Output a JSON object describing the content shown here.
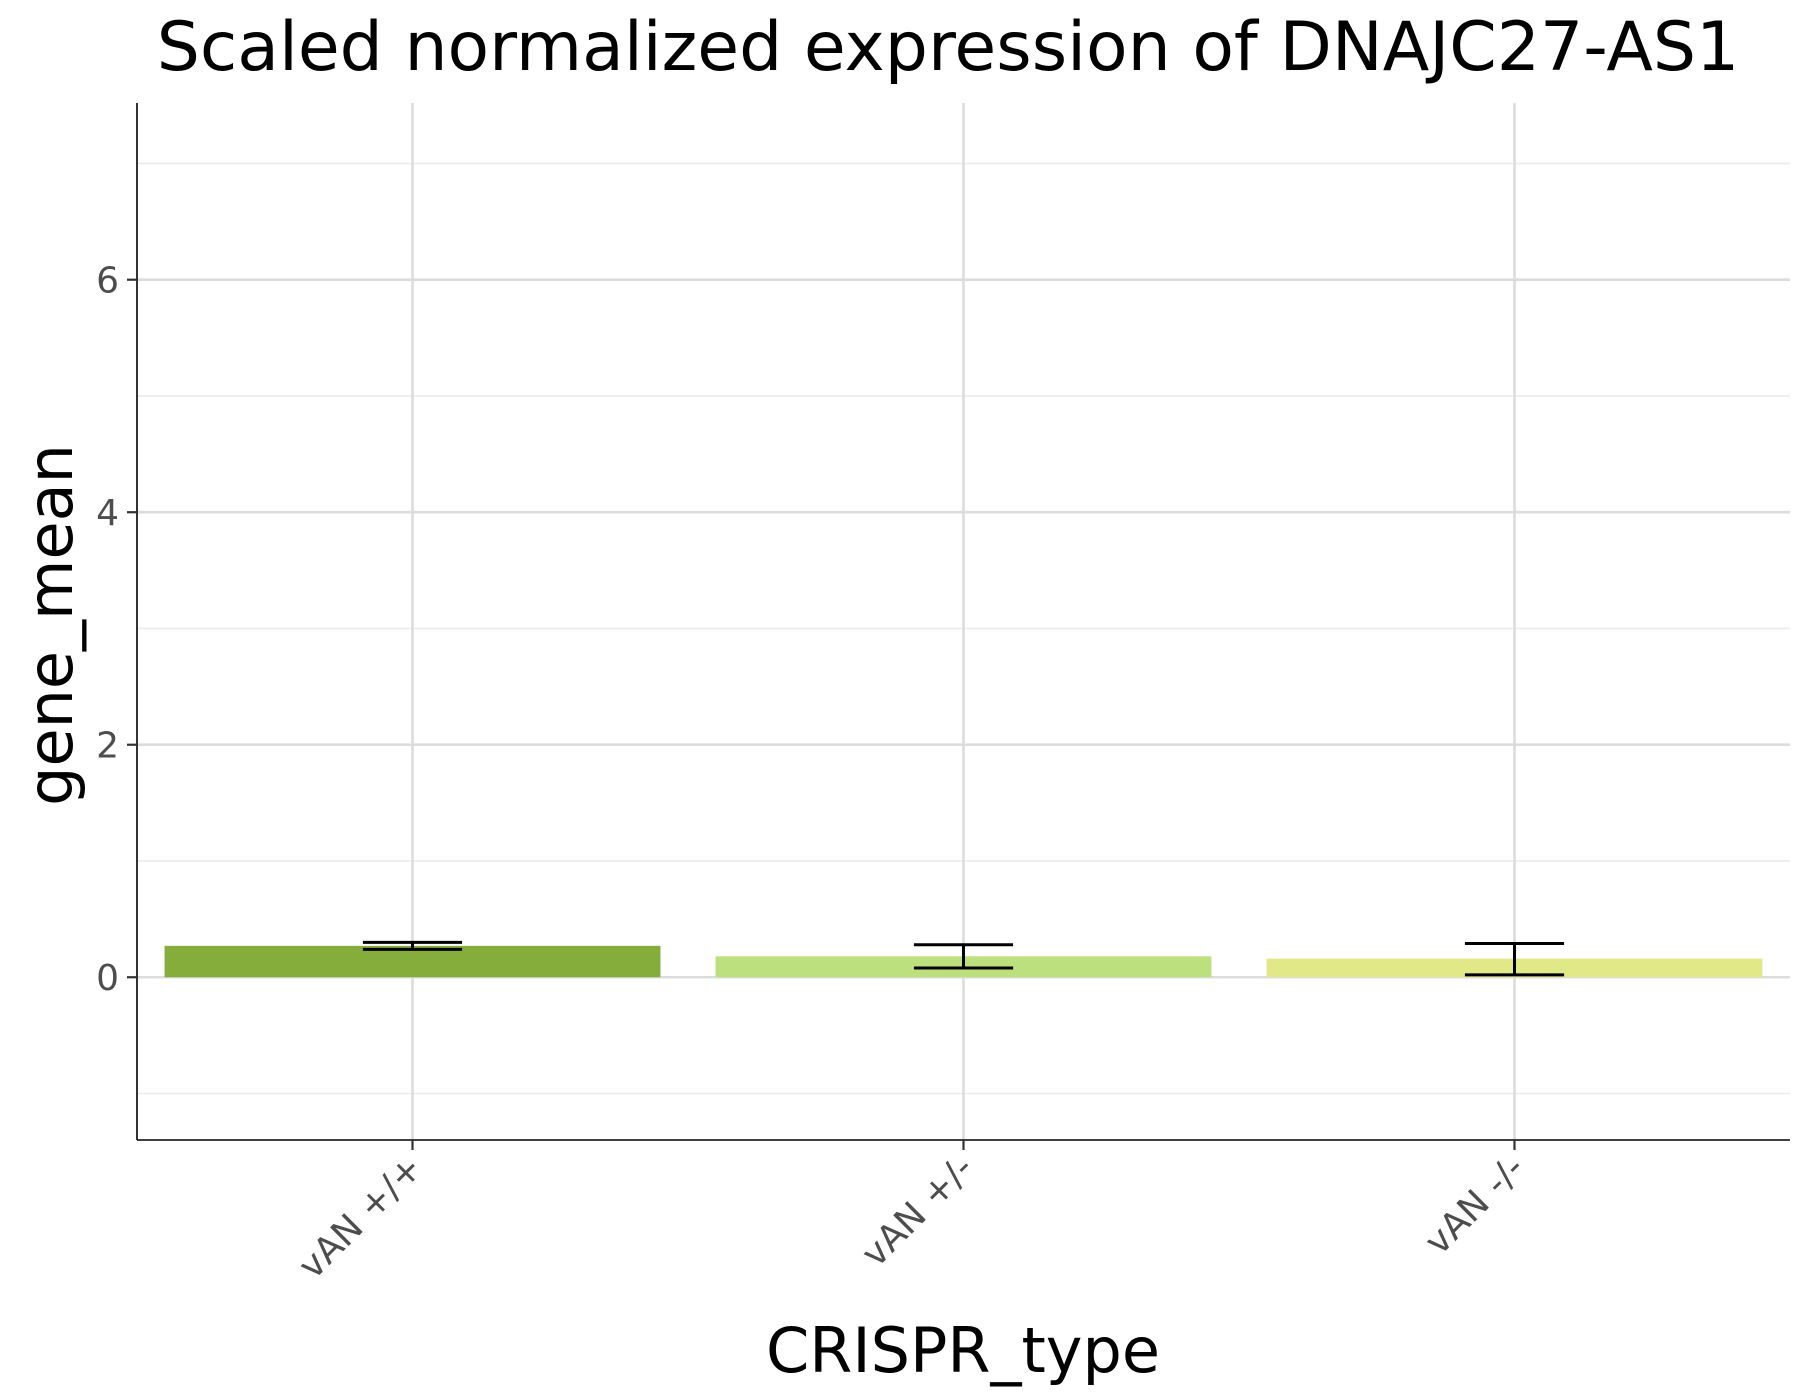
{
  "chart_data": {
    "type": "bar",
    "title": "Scaled normalized expression of DNAJC27-AS1",
    "xlabel": "CRISPR_type",
    "ylabel": "gene_mean",
    "categories": [
      "vAN +/+",
      "vAN +/-",
      "vAN -/-"
    ],
    "values": [
      0.27,
      0.18,
      0.16
    ],
    "error_low": [
      0.24,
      0.08,
      0.02
    ],
    "error_high": [
      0.3,
      0.28,
      0.29
    ],
    "colors": [
      "#84ad3c",
      "#bde07e",
      "#e1e888"
    ],
    "ylim": [
      -1.4,
      7.52
    ],
    "yticks": [
      0,
      2,
      4,
      6
    ],
    "ytick_labels": [
      "0",
      "2",
      "4",
      "6"
    ],
    "minor_yticks": [
      -1,
      1,
      3,
      5,
      7
    ],
    "grid": true,
    "legend": "none"
  }
}
